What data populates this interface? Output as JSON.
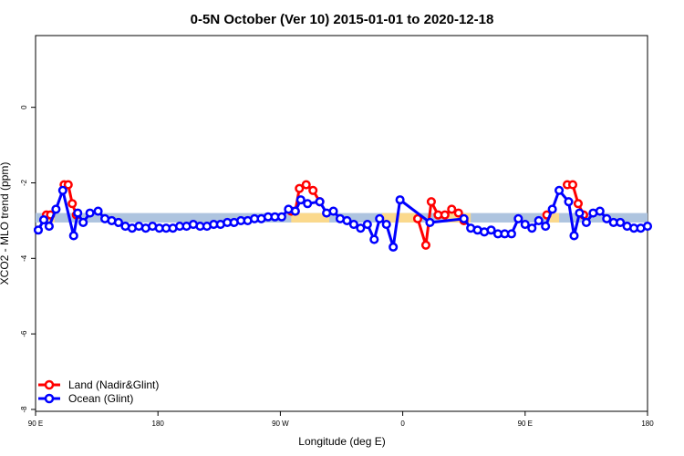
{
  "chart_data": {
    "type": "line",
    "title": "0-5N October (Ver 10)   2015-01-01 to 2020-12-18",
    "xlabel": "Longitude (deg E)",
    "ylabel": "XCO2 - MLO trend (ppm)",
    "xlim": [
      90,
      540
    ],
    "ylim": [
      -8.05,
      1.9
    ],
    "x_ticks": [
      {
        "value": 90,
        "label": "90 E"
      },
      {
        "value": 180,
        "label": "180"
      },
      {
        "value": 270,
        "label": "90 W"
      },
      {
        "value": 360,
        "label": "0"
      },
      {
        "value": 450,
        "label": "90 E"
      },
      {
        "value": 540,
        "label": "180"
      }
    ],
    "y_ticks": [
      {
        "value": 0,
        "label": "0"
      },
      {
        "value": -2,
        "label": "-2"
      },
      {
        "value": -4,
        "label": "-4"
      },
      {
        "value": -6,
        "label": "-6"
      },
      {
        "value": -8,
        "label": "-8"
      }
    ],
    "grid": false,
    "legend_position": "bottom-left",
    "bands": [
      {
        "name": "ocean-band",
        "color": "#aec4df",
        "y": [
          -3.05,
          -2.8
        ],
        "x": [
          90,
          540
        ]
      },
      {
        "name": "land-band",
        "color": "#fbd98c",
        "y": [
          -3.05,
          -2.8
        ],
        "segments": [
          [
            97,
            104
          ],
          [
            278,
            306
          ],
          [
            345,
            370
          ],
          [
            393,
            410
          ],
          [
            468,
            475
          ]
        ]
      }
    ],
    "series": [
      {
        "name": "Land (Nadir&Glint)",
        "color": "#ff0000",
        "segments": [
          [
            [
              98,
              -2.85
            ],
            [
              101,
              -2.85
            ]
          ],
          [
            [
              111,
              -2.05
            ],
            [
              114,
              -2.05
            ],
            [
              117,
              -2.55
            ],
            [
              120,
              -2.85
            ]
          ],
          [
            [
              278,
              -2.75
            ],
            [
              281,
              -2.75
            ],
            [
              284,
              -2.15
            ],
            [
              289,
              -2.05
            ],
            [
              294,
              -2.2
            ],
            [
              299,
              -2.5
            ]
          ],
          [
            [
              371,
              -2.95
            ],
            [
              377,
              -3.65
            ],
            [
              381,
              -2.5
            ],
            [
              386,
              -2.85
            ],
            [
              391,
              -2.85
            ],
            [
              396,
              -2.7
            ],
            [
              401,
              -2.8
            ],
            [
              405,
              -3.0
            ]
          ],
          [
            [
              466,
              -2.85
            ]
          ],
          [
            [
              481,
              -2.05
            ],
            [
              485,
              -2.05
            ],
            [
              489,
              -2.55
            ],
            [
              493,
              -2.85
            ]
          ]
        ]
      },
      {
        "name": "Ocean (Glint)",
        "color": "#0000ff",
        "points": [
          [
            92,
            -3.25
          ],
          [
            96,
            -2.98
          ],
          [
            100,
            -3.15
          ],
          [
            105,
            -2.7
          ],
          [
            110,
            -2.2
          ],
          [
            118,
            -3.4
          ],
          [
            121,
            -2.8
          ],
          [
            125,
            -3.05
          ],
          [
            130,
            -2.8
          ],
          [
            136,
            -2.75
          ],
          [
            141,
            -2.95
          ],
          [
            146,
            -3.0
          ],
          [
            151,
            -3.05
          ],
          [
            156,
            -3.15
          ],
          [
            161,
            -3.2
          ],
          [
            166,
            -3.15
          ],
          [
            171,
            -3.2
          ],
          [
            176,
            -3.15
          ],
          [
            181,
            -3.2
          ],
          [
            186,
            -3.2
          ],
          [
            191,
            -3.2
          ],
          [
            196,
            -3.15
          ],
          [
            201,
            -3.15
          ],
          [
            206,
            -3.1
          ],
          [
            211,
            -3.15
          ],
          [
            216,
            -3.15
          ],
          [
            221,
            -3.1
          ],
          [
            226,
            -3.1
          ],
          [
            231,
            -3.05
          ],
          [
            236,
            -3.05
          ],
          [
            241,
            -3.0
          ],
          [
            246,
            -3.0
          ],
          [
            251,
            -2.95
          ],
          [
            256,
            -2.95
          ],
          [
            261,
            -2.9
          ],
          [
            266,
            -2.9
          ],
          [
            271,
            -2.9
          ],
          [
            276,
            -2.7
          ],
          [
            281,
            -2.75
          ],
          [
            285,
            -2.45
          ],
          [
            290,
            -2.55
          ],
          [
            299,
            -2.5
          ],
          [
            304,
            -2.8
          ],
          [
            309,
            -2.75
          ],
          [
            314,
            -2.95
          ],
          [
            319,
            -3.0
          ],
          [
            324,
            -3.1
          ],
          [
            329,
            -3.2
          ],
          [
            334,
            -3.1
          ],
          [
            339,
            -3.5
          ],
          [
            343,
            -2.95
          ],
          [
            348,
            -3.1
          ],
          [
            353,
            -3.7
          ],
          [
            358,
            -2.45
          ],
          [
            380,
            -3.05
          ],
          [
            405,
            -2.95
          ],
          [
            410,
            -3.2
          ],
          [
            415,
            -3.25
          ],
          [
            420,
            -3.3
          ],
          [
            425,
            -3.25
          ],
          [
            430,
            -3.35
          ],
          [
            435,
            -3.35
          ],
          [
            440,
            -3.35
          ],
          [
            445,
            -2.95
          ],
          [
            450,
            -3.1
          ],
          [
            455,
            -3.2
          ],
          [
            460,
            -3.0
          ],
          [
            465,
            -3.15
          ],
          [
            470,
            -2.7
          ],
          [
            475,
            -2.2
          ],
          [
            482,
            -2.5
          ],
          [
            486,
            -3.4
          ],
          [
            490,
            -2.8
          ],
          [
            495,
            -3.05
          ],
          [
            500,
            -2.8
          ],
          [
            505,
            -2.75
          ],
          [
            510,
            -2.95
          ],
          [
            515,
            -3.05
          ],
          [
            520,
            -3.05
          ],
          [
            525,
            -3.15
          ],
          [
            530,
            -3.2
          ],
          [
            535,
            -3.2
          ],
          [
            540,
            -3.15
          ]
        ]
      }
    ]
  }
}
